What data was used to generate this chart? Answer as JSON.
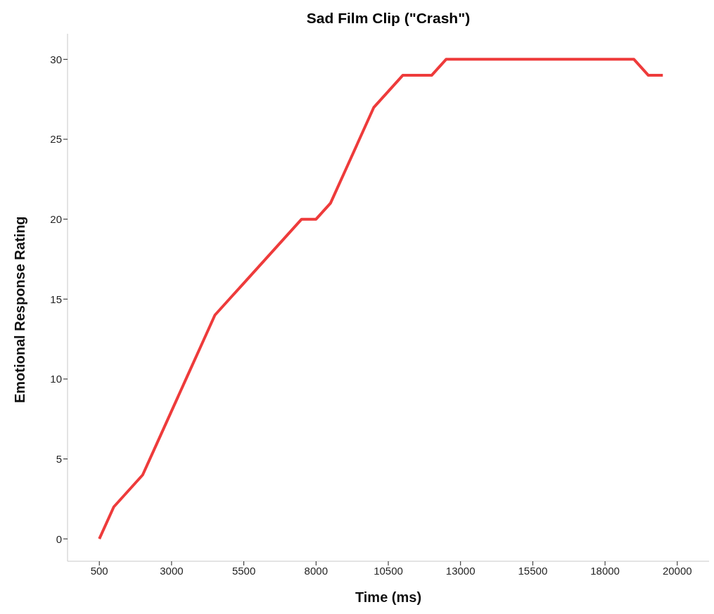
{
  "chart_data": {
    "type": "line",
    "title": "Sad Film Clip (\"Crash\")",
    "xlabel": "Time (ms)",
    "ylabel": "Emotional Response Rating",
    "categories": [
      "500",
      null,
      null,
      null,
      null,
      "3000",
      null,
      null,
      null,
      null,
      "5500",
      null,
      null,
      null,
      null,
      "8000",
      null,
      null,
      null,
      null,
      "10500",
      null,
      null,
      null,
      null,
      "13000",
      null,
      null,
      null,
      null,
      "15500",
      null,
      null,
      null,
      null,
      "18000",
      null,
      null,
      null,
      null,
      "20000"
    ],
    "series": [
      {
        "color": "#ee3b3b",
        "values": [
          0,
          2,
          3,
          4,
          6,
          8,
          10,
          12,
          14,
          15,
          16,
          17,
          18,
          19,
          20,
          20,
          21,
          23,
          25,
          27,
          28,
          29,
          29,
          29,
          30,
          30,
          30,
          30,
          30,
          30,
          30,
          30,
          30,
          30,
          30,
          30,
          30,
          30,
          29,
          29,
          null
        ]
      }
    ],
    "ylim": [
      -1.4,
      31.6
    ],
    "yticks": [
      0,
      5,
      10,
      15,
      20,
      25,
      30
    ],
    "grid": false,
    "legend": false,
    "marker": "none",
    "line_style": "solid"
  }
}
